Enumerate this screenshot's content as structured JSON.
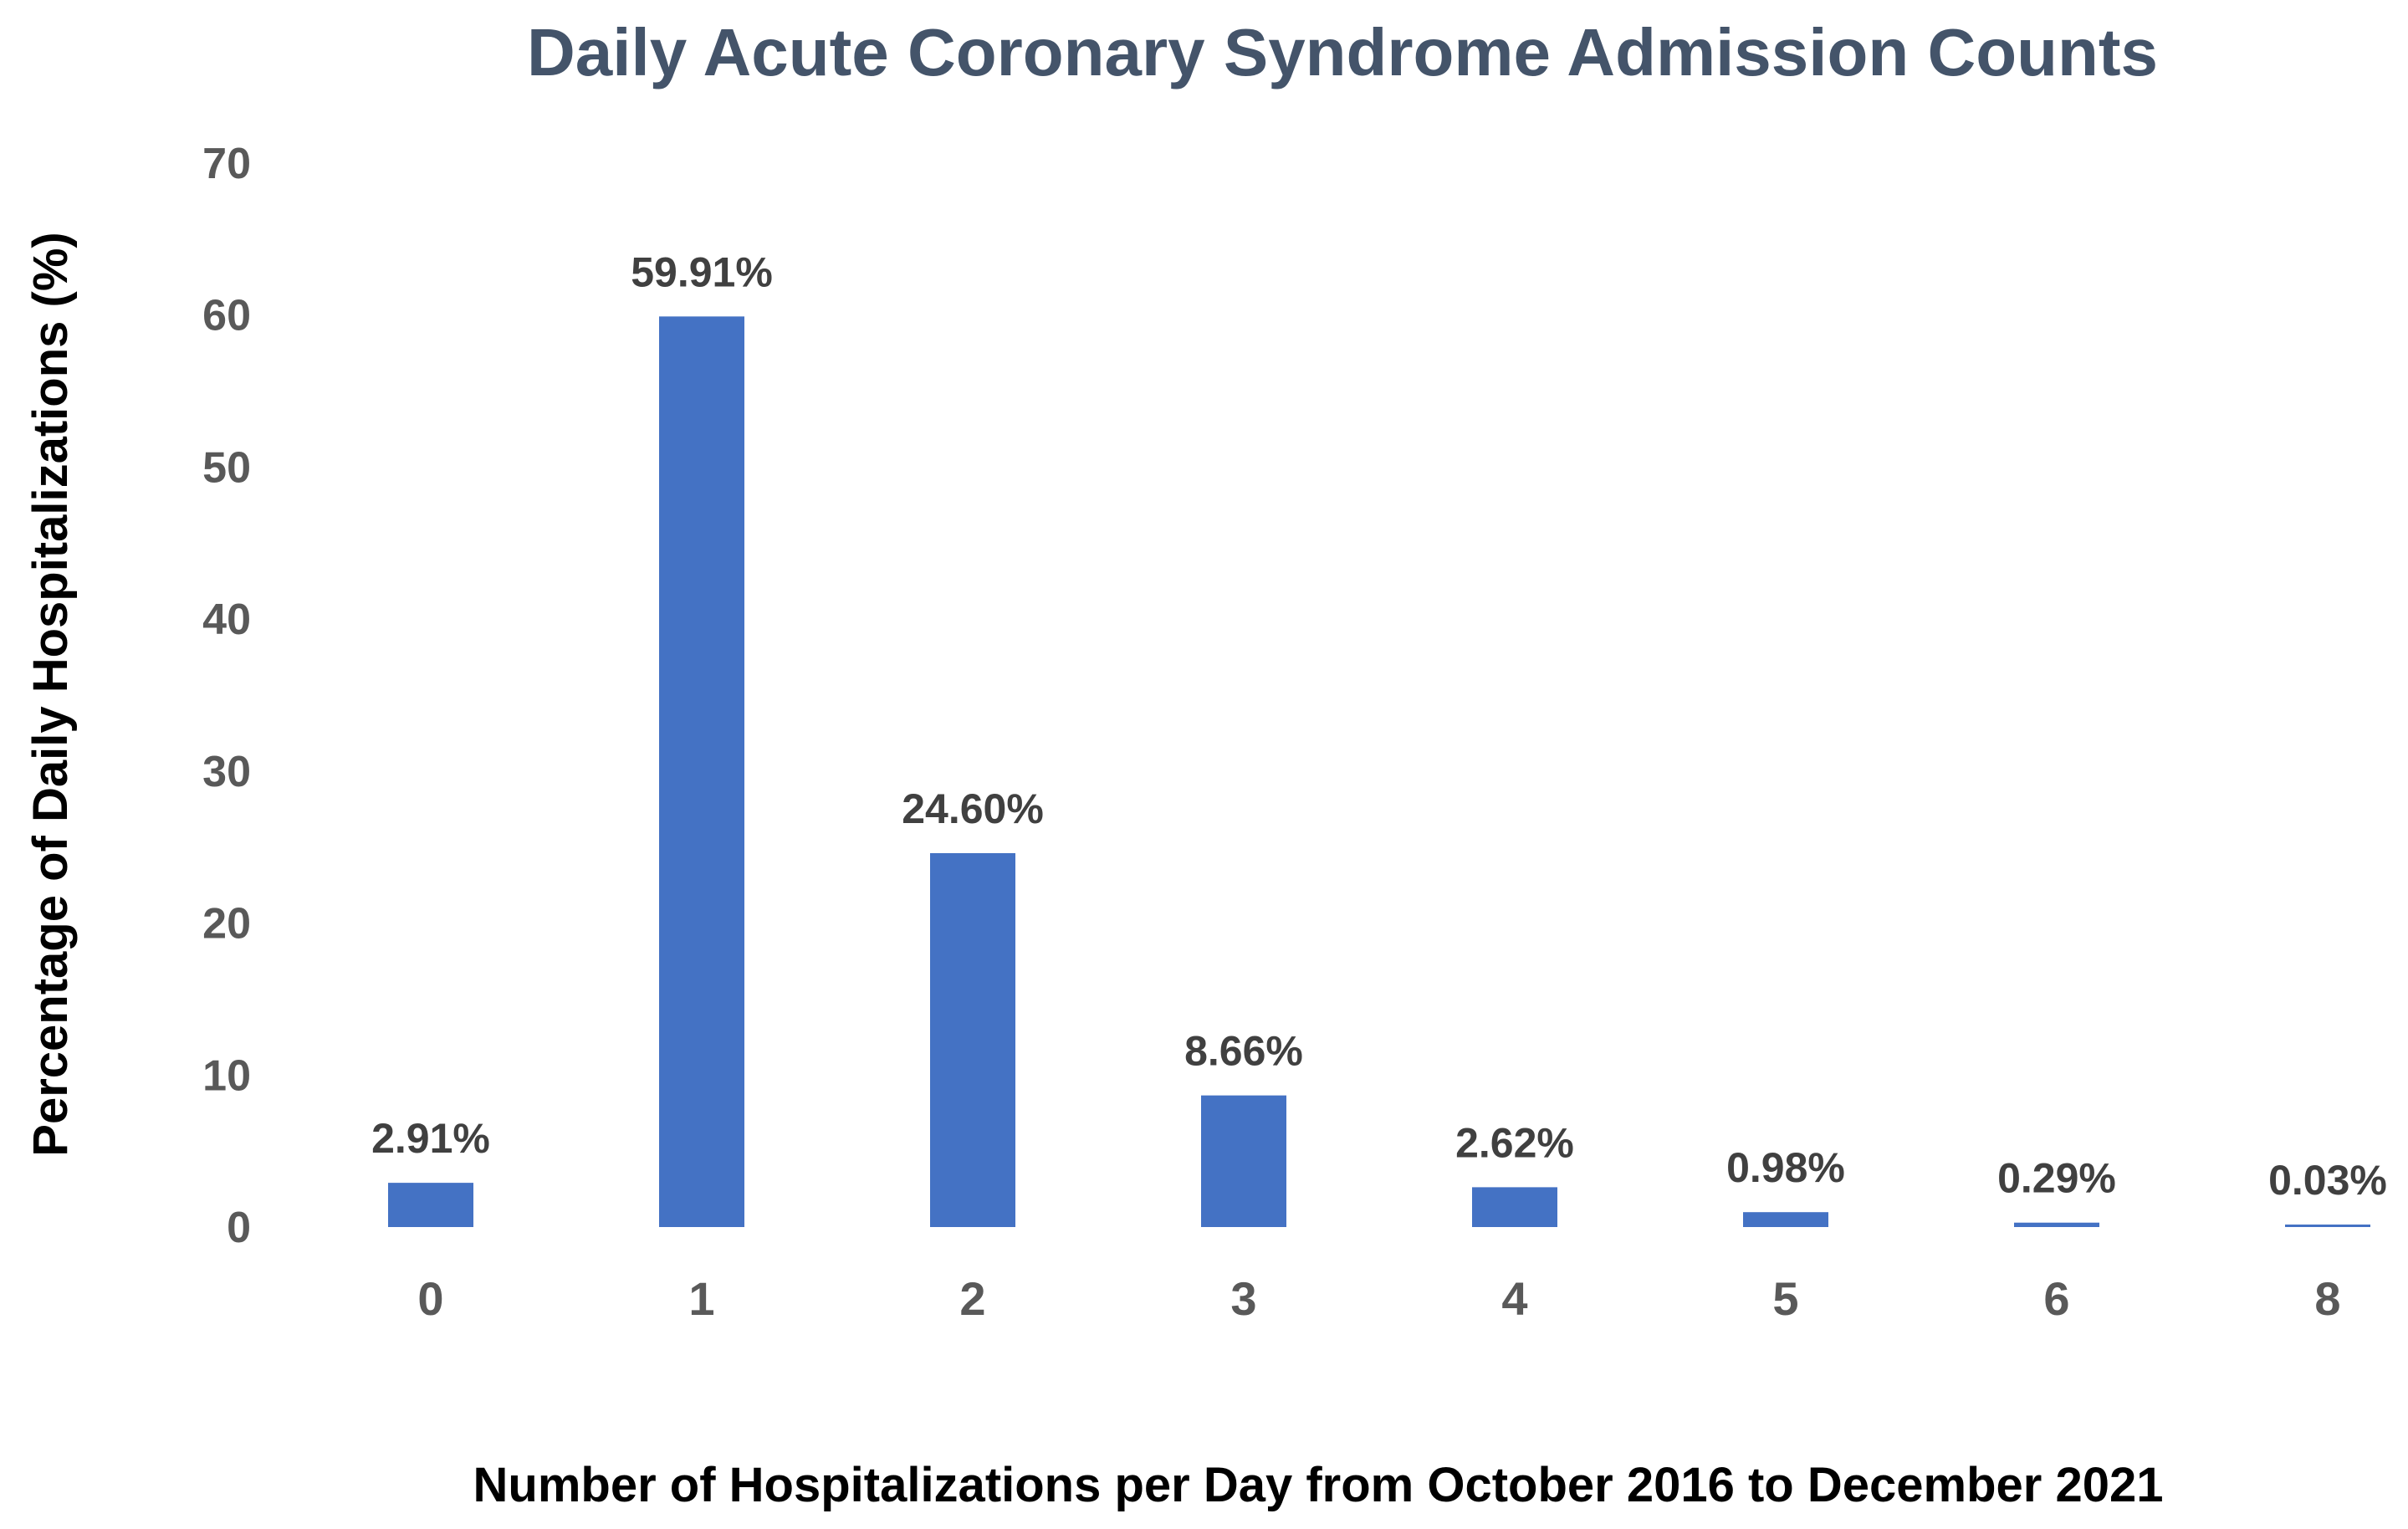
{
  "chart_data": {
    "type": "bar",
    "title": "Daily Acute Coronary Syndrome Admission Counts",
    "xlabel": "Number of Hospitalizations per Day from October 2016 to December 2021",
    "ylabel": "Percentage of Daily Hospitalizations (%)",
    "categories": [
      "0",
      "1",
      "2",
      "3",
      "4",
      "5",
      "6",
      "8"
    ],
    "values": [
      2.91,
      59.91,
      24.6,
      8.66,
      2.62,
      0.98,
      0.29,
      0.03
    ],
    "data_labels": [
      "2.91%",
      "59.91%",
      "24.60%",
      "8.66%",
      "2.62%",
      "0.98%",
      "0.29%",
      "0.03%"
    ],
    "ylim": [
      0,
      70
    ],
    "yticks": [
      "0",
      "10",
      "20",
      "30",
      "40",
      "50",
      "60",
      "70"
    ],
    "grid": false,
    "legend": "none"
  },
  "colors": {
    "bar": "#4472C4",
    "title": "#44546A"
  }
}
